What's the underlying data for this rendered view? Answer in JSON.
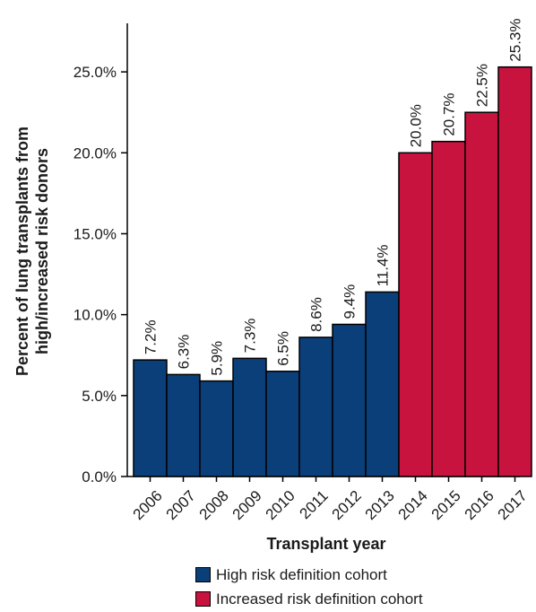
{
  "chart_data": {
    "type": "bar",
    "title": "",
    "xlabel": "Transplant year",
    "ylabel": "Percent of lung transplants from high/increased risk donors",
    "ylabel_lines": [
      "Percent of lung transplants from",
      "high/increased risk donors"
    ],
    "ylim": [
      0,
      28
    ],
    "yticks": [
      "0.0%",
      "5.0%",
      "10.0%",
      "15.0%",
      "20.0%",
      "25.0%"
    ],
    "ytick_values": [
      0,
      5,
      10,
      15,
      20,
      25
    ],
    "categories": [
      "2006",
      "2007",
      "2008",
      "2009",
      "2010",
      "2011",
      "2012",
      "2013",
      "2014",
      "2015",
      "2016",
      "2017"
    ],
    "values": [
      7.2,
      6.3,
      5.9,
      7.3,
      6.5,
      8.6,
      9.4,
      11.4,
      20.0,
      20.7,
      22.5,
      25.3
    ],
    "data_labels": [
      "7.2%",
      "6.3%",
      "5.9%",
      "7.3%",
      "6.5%",
      "8.6%",
      "9.4%",
      "11.4%",
      "20.0%",
      "20.7%",
      "22.5%",
      "25.3%"
    ],
    "bar_series_index": [
      0,
      0,
      0,
      0,
      0,
      0,
      0,
      0,
      1,
      1,
      1,
      1
    ],
    "series": [
      {
        "name": "High risk definition cohort",
        "color": "#0b3f79"
      },
      {
        "name": "Increased risk definition cohort",
        "color": "#c8133f"
      }
    ],
    "legend": "bottom",
    "grid": false
  }
}
